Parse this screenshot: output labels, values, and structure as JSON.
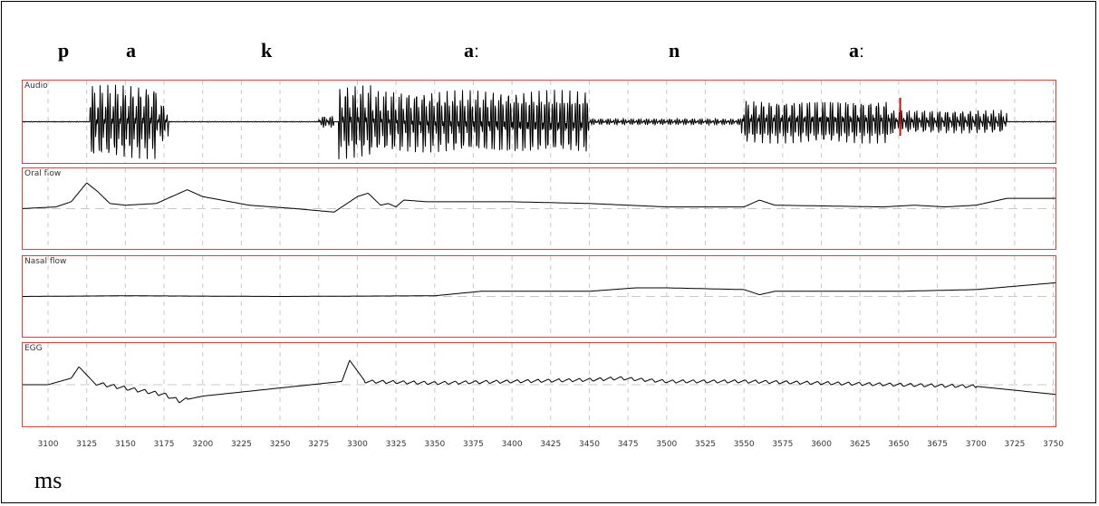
{
  "chart_data": {
    "type": "line",
    "segments": [
      "p",
      "a",
      "k",
      "aː",
      "n",
      "aː"
    ],
    "panels": [
      {
        "name": "Audio"
      },
      {
        "name": "Oral flow"
      },
      {
        "name": "Nasal flow"
      },
      {
        "name": "EGG"
      }
    ],
    "x_ticks": [
      3100,
      3125,
      3150,
      3175,
      3200,
      3225,
      3250,
      3275,
      3300,
      3325,
      3350,
      3375,
      3400,
      3425,
      3450,
      3475,
      3500,
      3525,
      3550,
      3575,
      3600,
      3625,
      3650,
      3675,
      3700,
      3725,
      3750
    ],
    "x_range": [
      3083,
      3752
    ],
    "x_unit": "ms",
    "grid": true,
    "series": [
      {
        "panel": "Audio",
        "bursts": [
          {
            "start": 3127,
            "end": 3170,
            "amplitude": 0.95
          },
          {
            "start": 3170,
            "end": 3178,
            "amplitude": 0.5
          },
          {
            "start": 3275,
            "end": 3285,
            "amplitude": 0.15
          },
          {
            "start": 3288,
            "end": 3310,
            "amplitude": 0.95
          },
          {
            "start": 3310,
            "end": 3450,
            "amplitude": 0.8
          },
          {
            "start": 3450,
            "end": 3548,
            "amplitude": 0.08
          },
          {
            "start": 3548,
            "end": 3645,
            "amplitude": 0.55
          },
          {
            "start": 3645,
            "end": 3720,
            "amplitude": 0.3
          }
        ]
      },
      {
        "panel": "Oral flow",
        "x": [
          3083,
          3105,
          3115,
          3125,
          3132,
          3140,
          3150,
          3170,
          3190,
          3200,
          3230,
          3260,
          3285,
          3300,
          3307,
          3315,
          3320,
          3325,
          3330,
          3345,
          3400,
          3450,
          3500,
          3550,
          3560,
          3570,
          3600,
          3640,
          3660,
          3680,
          3700,
          3720,
          3752
        ],
        "y": [
          0.0,
          0.05,
          0.2,
          0.75,
          0.5,
          0.15,
          0.1,
          0.15,
          0.55,
          0.35,
          0.1,
          0.0,
          -0.1,
          0.35,
          0.45,
          0.1,
          0.15,
          0.05,
          0.25,
          0.2,
          0.2,
          0.15,
          0.05,
          0.05,
          0.25,
          0.1,
          0.08,
          0.05,
          0.1,
          0.05,
          0.1,
          0.3,
          0.3
        ]
      },
      {
        "panel": "Nasal flow",
        "x": [
          3083,
          3150,
          3250,
          3350,
          3380,
          3400,
          3450,
          3480,
          3500,
          3550,
          3560,
          3570,
          3650,
          3700,
          3752
        ],
        "y": [
          0.0,
          0.02,
          0.0,
          0.02,
          0.15,
          0.15,
          0.15,
          0.25,
          0.25,
          0.2,
          0.05,
          0.15,
          0.15,
          0.2,
          0.4
        ]
      },
      {
        "panel": "EGG",
        "x": [
          3083,
          3100,
          3115,
          3120,
          3130,
          3175,
          3185,
          3200,
          3250,
          3290,
          3295,
          3305,
          3350,
          3400,
          3450,
          3470,
          3500,
          3550,
          3600,
          3650,
          3700,
          3752
        ],
        "y": [
          0.0,
          0.0,
          0.2,
          0.55,
          0.05,
          -0.3,
          -0.5,
          -0.35,
          -0.1,
          0.1,
          0.75,
          0.1,
          0.05,
          0.1,
          0.15,
          0.2,
          0.1,
          0.1,
          0.05,
          0.0,
          -0.05,
          -0.3
        ],
        "oscillation": [
          {
            "start": 3130,
            "end": 3190,
            "amplitude": 0.12
          },
          {
            "start": 3305,
            "end": 3700,
            "amplitude": 0.1
          }
        ]
      }
    ]
  }
}
